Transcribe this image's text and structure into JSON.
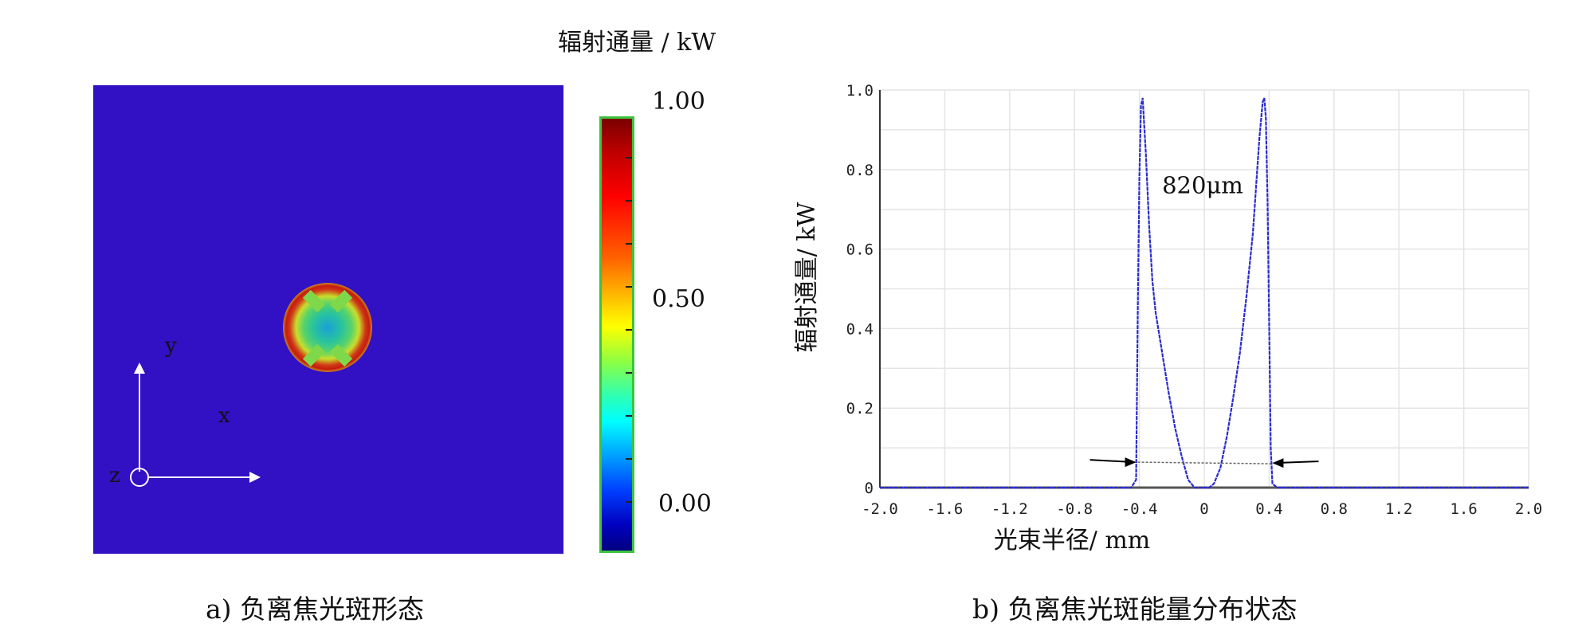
{
  "colorbar": {
    "title": "辐射通量 / kW",
    "ticks": [
      "1.00",
      "0.50",
      "0.00"
    ]
  },
  "axes_labels": {
    "y": "y",
    "x": "x",
    "z": "z"
  },
  "captions": {
    "left": "a) 负离焦光斑形态",
    "right": "b) 负离焦光斑能量分布状态"
  },
  "chart_data": [
    {
      "type": "heatmap",
      "title": "",
      "colorbar_label": "辐射通量 / kW",
      "colorbar_range": [
        0.0,
        1.0
      ],
      "colorbar_ticks": [
        "1.00",
        "0.50",
        "0.00"
      ],
      "colors": {
        "background": "#3210c4"
      },
      "description_values": {
        "background_level": 0.1,
        "ring_peak": 0.98,
        "center_level": 0.3
      }
    },
    {
      "type": "line",
      "xlabel": "光束半径/ mm",
      "ylabel": "辐射通量/ kW",
      "xlim": [
        -2.0,
        2.0
      ],
      "ylim": [
        0,
        1.0
      ],
      "x_ticks": [
        "-2.0",
        "-1.6",
        "-1.2",
        "-0.8",
        "-0.4",
        "0",
        "0.4",
        "0.8",
        "1.2",
        "1.6",
        "2.0"
      ],
      "y_ticks": [
        "0",
        "0.2",
        "0.4",
        "0.6",
        "0.8",
        "1.0"
      ],
      "grid": true,
      "annotation": "820μm",
      "annotation_width_mm": [
        -0.41,
        0.41
      ],
      "annotation_y": 0.064,
      "line_color": "#2a2ad0",
      "series": [
        {
          "x": [
            -2.0,
            -0.45,
            -0.42,
            -0.41,
            -0.4,
            -0.39,
            -0.38,
            -0.36,
            -0.34,
            -0.32,
            -0.3,
            -0.26,
            -0.22,
            -0.18,
            -0.14,
            -0.1,
            -0.06,
            -0.03,
            0.0,
            0.03,
            0.06,
            0.1,
            0.14,
            0.18,
            0.22,
            0.26,
            0.3,
            0.32,
            0.34,
            0.36,
            0.37,
            0.38,
            0.39,
            0.4,
            0.41,
            0.42,
            0.45,
            2.0
          ],
          "values": [
            0,
            0,
            0.02,
            0.45,
            0.78,
            0.96,
            0.98,
            0.84,
            0.66,
            0.52,
            0.44,
            0.34,
            0.24,
            0.15,
            0.08,
            0.02,
            0,
            0,
            0,
            0,
            0.01,
            0.05,
            0.13,
            0.23,
            0.34,
            0.48,
            0.64,
            0.76,
            0.88,
            0.97,
            0.98,
            0.93,
            0.72,
            0.42,
            0.1,
            0.01,
            0,
            0
          ]
        }
      ]
    }
  ]
}
